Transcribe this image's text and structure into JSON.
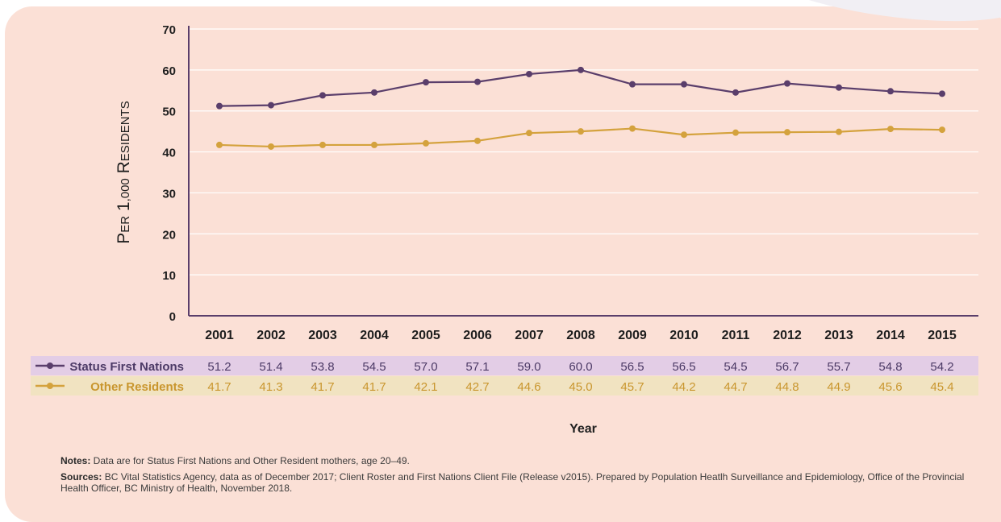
{
  "chart_data": {
    "type": "line",
    "ylabel": "Per 1,000 Residents",
    "xlabel": "Year",
    "ylim": [
      0,
      70
    ],
    "yticks": [
      0,
      10,
      20,
      30,
      40,
      50,
      60,
      70
    ],
    "grid": true,
    "categories": [
      "2001",
      "2002",
      "2003",
      "2004",
      "2005",
      "2006",
      "2007",
      "2008",
      "2009",
      "2010",
      "2011",
      "2012",
      "2013",
      "2014",
      "2015"
    ],
    "series": [
      {
        "name": "Status First Nations",
        "color": "#5a3e6b",
        "values": [
          51.2,
          51.4,
          53.8,
          54.5,
          57.0,
          57.1,
          59.0,
          60.0,
          56.5,
          56.5,
          54.5,
          56.7,
          55.7,
          54.8,
          54.2
        ],
        "labels": [
          "51.2",
          "51.4",
          "53.8",
          "54.5",
          "57.0",
          "57.1",
          "59.0",
          "60.0",
          "56.5",
          "56.5",
          "54.5",
          "56.7",
          "55.7",
          "54.8",
          "54.2"
        ],
        "row_bg": "#e3cde6",
        "label_color": "#4c3a66"
      },
      {
        "name": "Other Residents",
        "color": "#d4a23d",
        "values": [
          41.7,
          41.3,
          41.7,
          41.7,
          42.1,
          42.7,
          44.6,
          45.0,
          45.7,
          44.2,
          44.7,
          44.8,
          44.9,
          45.6,
          45.4
        ],
        "labels": [
          "41.7",
          "41.3",
          "41.7",
          "41.7",
          "42.1",
          "42.7",
          "44.6",
          "45.0",
          "45.7",
          "44.2",
          "44.7",
          "44.8",
          "44.9",
          "45.6",
          "45.4"
        ],
        "row_bg": "#f1e3c1",
        "label_color": "#c9962e"
      }
    ]
  },
  "notes": {
    "notes_label": "Notes:",
    "notes_text": " Data are for Status First Nations and Other Resident mothers, age 20–49.",
    "sources_label": "Sources:",
    "sources_text": " BC Vital Statistics Agency, data as of December 2017; Client Roster and First Nations Client File (Release v2015). Prepared by Population Heatlh Surveillance and Epidemiology, Office of the Provincial Health Officer, BC Ministry of Health, November 2018."
  }
}
